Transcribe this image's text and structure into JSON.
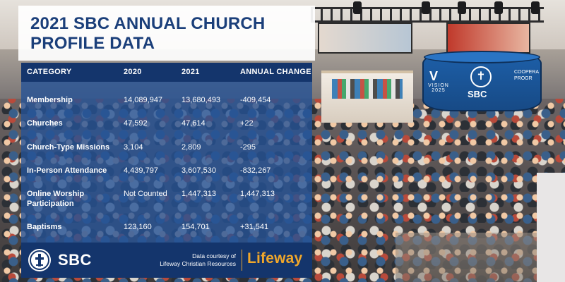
{
  "background": {
    "booth_sign": {
      "vision_mark": "V",
      "vision_text": "VISION 2025",
      "logo_text": "SBC",
      "side_text": "COOPERA PROGR"
    }
  },
  "card": {
    "title_line1": "2021 SBC ANNUAL CHURCH",
    "title_line2": "PROFILE DATA",
    "columns": [
      "CATEGORY",
      "2020",
      "2021",
      "ANNUAL CHANGE"
    ],
    "rows": [
      {
        "category_line1": "Membership",
        "category_line2": "",
        "y2020": "14,089,947",
        "y2021": "13,680,493",
        "change": "-409,454"
      },
      {
        "category_line1": "Churches",
        "category_line2": "",
        "y2020": "47,592",
        "y2021": "47,614",
        "change": "+22"
      },
      {
        "category_line1": "Church-Type Missions",
        "category_line2": "",
        "y2020": "3,104",
        "y2021": "2,809",
        "change": "-295"
      },
      {
        "category_line1": "In-Person Attendance",
        "category_line2": "",
        "y2020": "4,439,797",
        "y2021": "3,607,530",
        "change": "-832,267"
      },
      {
        "category_line1": "Online Worship",
        "category_line2": "Participation",
        "y2020": "Not Counted",
        "y2021": "1,447,313",
        "change": "1,447,313"
      },
      {
        "category_line1": "Baptisms",
        "category_line2": "",
        "y2020": "123,160",
        "y2021": "154,701",
        "change": "+31,541"
      }
    ],
    "footer": {
      "org_name": "SBC",
      "credit_line1": "Data courtesy of",
      "credit_line2": "Lifeway Christian Resources",
      "partner_name": "Lifeway"
    }
  },
  "colors": {
    "title_blue": "#1b3f7a",
    "header_navy": "#14356c",
    "table_blue": "#255296",
    "lifeway_orange": "#f0a72b"
  },
  "icons": {
    "sbc_logo": "sbc-cross-logo-icon"
  }
}
